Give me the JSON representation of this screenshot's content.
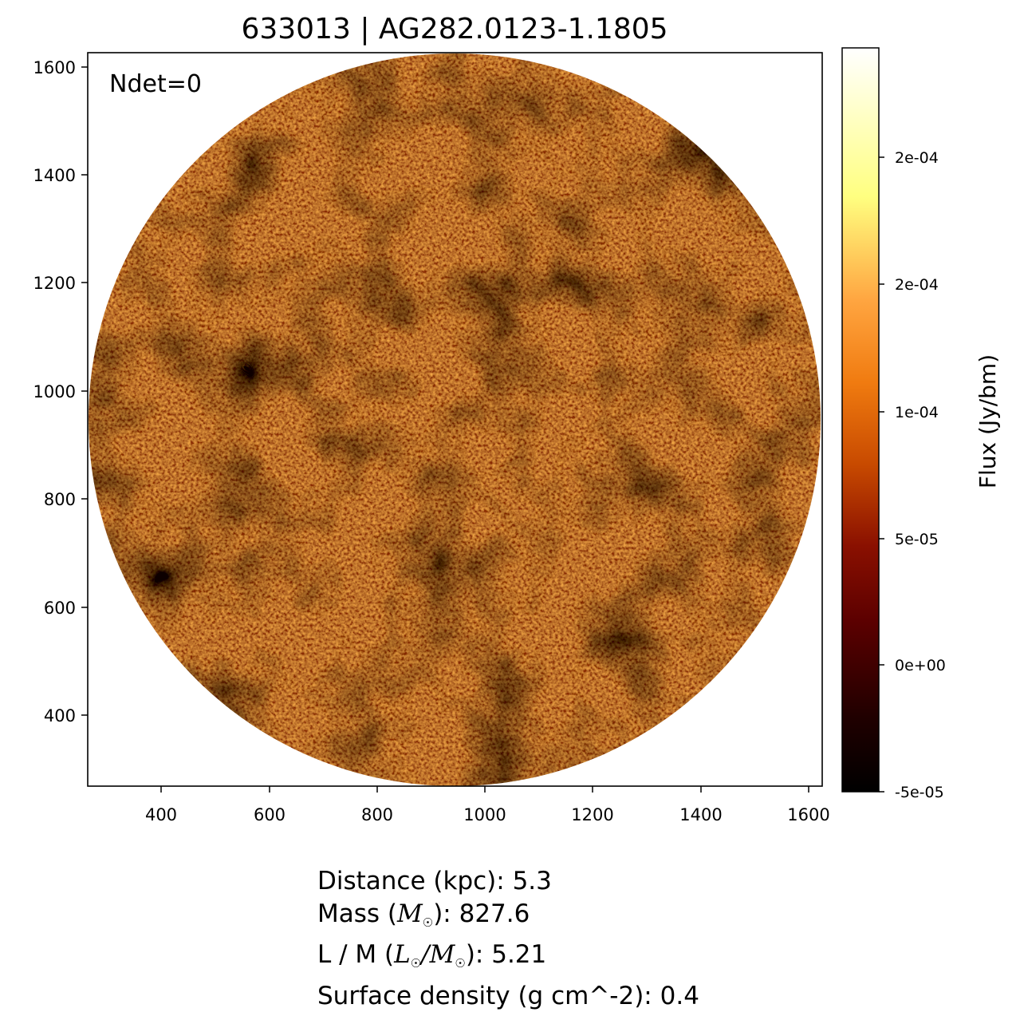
{
  "title": "633013 | AG282.0123-1.1805",
  "annotation": "Ndet=0",
  "x_axis": {
    "ticks": [
      "400",
      "600",
      "800",
      "1000",
      "1200",
      "1400",
      "1600"
    ]
  },
  "y_axis": {
    "ticks": [
      "400",
      "600",
      "800",
      "1000",
      "1200",
      "1400",
      "1600"
    ]
  },
  "colorbar": {
    "label": "Flux (Jy/bm)",
    "ticks": [
      "-5e-05",
      "0e+00",
      "5e-05",
      "1e-04",
      "2e-04",
      "2e-04"
    ],
    "colormap": "afmhot",
    "stops": [
      "#000000",
      "#3a0000",
      "#7a0000",
      "#b82d00",
      "#f0700a",
      "#ff9a2e",
      "#ffcf68",
      "#ffff88",
      "#ffffff"
    ]
  },
  "image": {
    "description_colormap": "afmhot",
    "mask": "circle"
  },
  "info": {
    "distance_label": "Distance (kpc): ",
    "distance_value": "5.3",
    "mass_label_pre": "Mass (",
    "mass_unit": "M",
    "mass_label_post": "): ",
    "mass_value": "827.6",
    "lm_label_pre": "L / M (",
    "lm_unit_l": "L",
    "lm_sep": "/",
    "lm_unit_m": "M",
    "lm_label_post": "): ",
    "lm_value": "5.21",
    "surface_label": "Surface density (g cm^-2): ",
    "surface_value": "0.4"
  }
}
